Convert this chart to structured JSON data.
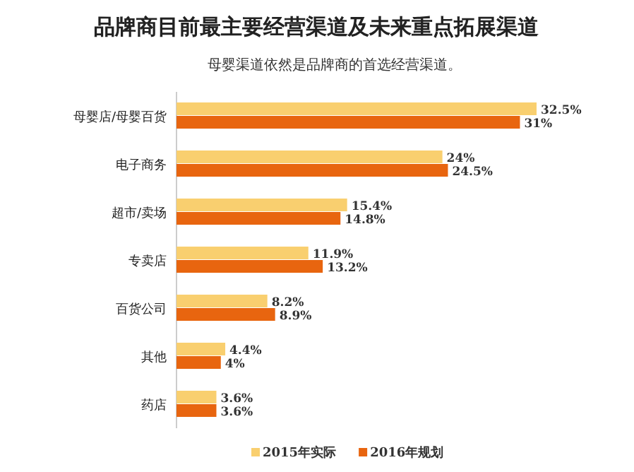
{
  "chart_data": {
    "type": "bar",
    "orientation": "horizontal",
    "title": "品牌商目前最主要经营渠道及未来重点拓展渠道",
    "subtitle": "母婴渠道依然是品牌商的首选经营渠道。",
    "categories": [
      "母婴店/母婴百货",
      "电子商务",
      "超市/卖场",
      "专卖店",
      "百货公司",
      "其他",
      "药店"
    ],
    "series": [
      {
        "name": "2015年实际",
        "color": "#f9cf6f",
        "values": [
          32.5,
          24,
          15.4,
          11.9,
          8.2,
          4.4,
          3.6
        ],
        "value_labels": [
          "32.5%",
          "24%",
          "15.4%",
          "11.9%",
          "8.2%",
          "4.4%",
          "3.6%"
        ]
      },
      {
        "name": "2016年规划",
        "color": "#e8650f",
        "values": [
          31,
          24.5,
          14.8,
          13.2,
          8.9,
          4,
          3.6
        ],
        "value_labels": [
          "31%",
          "24.5%",
          "14.8%",
          "13.2%",
          "8.9%",
          "4%",
          "3.6%"
        ]
      }
    ],
    "legend": "bottom"
  }
}
